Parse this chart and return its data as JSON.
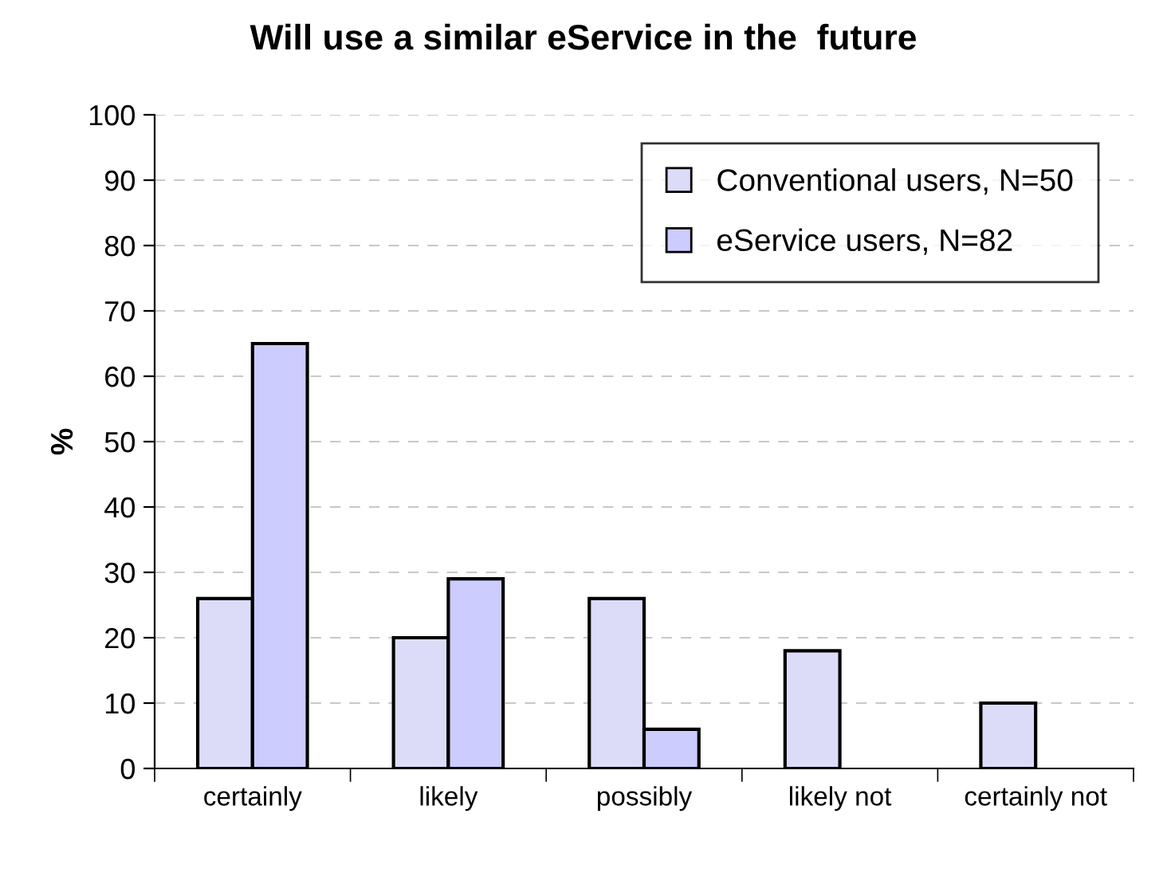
{
  "chart_data": {
    "type": "bar",
    "title": "Will use a similar eService in the  future",
    "ylabel": "%",
    "categories": [
      "certainly",
      "likely",
      "possibly",
      "likely not",
      "certainly not"
    ],
    "series": [
      {
        "name": "Conventional users, N=50",
        "color": "#dcdcf8",
        "values": [
          26,
          20,
          26,
          18,
          10
        ]
      },
      {
        "name": "eService users, N=82",
        "color": "#ccccff",
        "values": [
          65,
          29,
          6,
          0,
          0
        ]
      }
    ],
    "ylim": [
      0,
      100
    ],
    "yticks": [
      0,
      10,
      20,
      30,
      40,
      50,
      60,
      70,
      80,
      90,
      100
    ],
    "grid": "y",
    "legend": "top right"
  }
}
